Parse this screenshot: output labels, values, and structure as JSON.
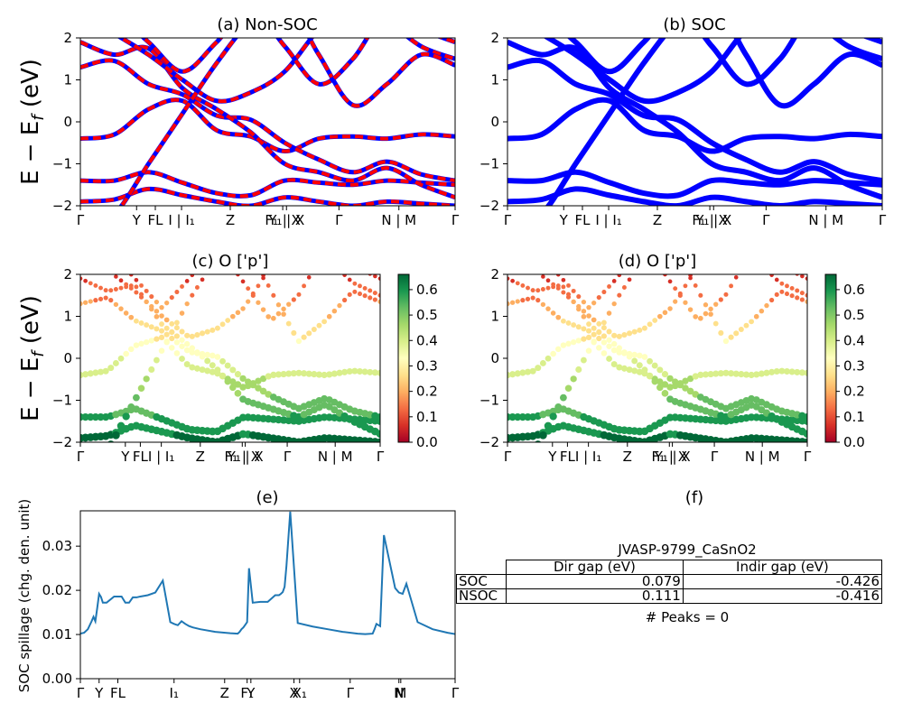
{
  "panels": {
    "a": {
      "title": "(a) Non-SOC"
    },
    "b": {
      "title": "(b) SOC"
    },
    "c": {
      "title": "(c)  O ['p']"
    },
    "d": {
      "title": "(d) O ['p']"
    },
    "e": {
      "title": "(e)"
    },
    "f": {
      "title": "(f)"
    }
  },
  "ylabel_energy": "E − E_f (eV)",
  "ylabel_spillage": "SOC spillage (chg. den. unit)",
  "kpath_labels": [
    "Γ",
    "Y",
    "FL",
    "I | I₁",
    "Z",
    "F₁ | X",
    "Y₁ | X",
    "Γ",
    "N | M",
    "Γ"
  ],
  "spillage_labels": [
    "Γ",
    "Y",
    "FL",
    "I₁",
    "Z",
    "F₁",
    "Y",
    "X",
    "X₁",
    "Γ",
    "N",
    "M",
    "Γ"
  ],
  "table": {
    "caption": "JVASP-9799_CaSnO2",
    "headers": [
      "Dir gap (eV)",
      "Indir gap (eV)"
    ],
    "rows": [
      {
        "label": "SOC",
        "dir": "0.079",
        "indir": "-0.426"
      },
      {
        "label": "NSOC",
        "dir": "0.111",
        "indir": "-0.416"
      }
    ],
    "peaks": "# Peaks = 0"
  },
  "chart_data": [
    {
      "id": "a",
      "type": "line",
      "title": "(a) Non-SOC",
      "ylabel": "E − E_f (eV)",
      "ylim": [
        -2,
        2
      ],
      "yticks": [
        -2,
        -1,
        0,
        1,
        2
      ],
      "x_ticks": [
        0,
        0.15,
        0.2,
        0.27,
        0.4,
        0.54,
        0.55,
        0.69,
        0.85,
        1.0
      ],
      "x_tick_labels": [
        "Γ",
        "Y",
        "FL",
        "I | I₁",
        "Z",
        "F₁ | X",
        "Y₁ | X",
        "Γ",
        "N | M",
        "Γ"
      ],
      "series_colors": {
        "non_soc": "#ff0000",
        "soc": "#0000ff"
      },
      "bands_energy_eV": [
        [
          -1.9,
          -1.85,
          -1.6,
          -1.75,
          -1.9,
          -2.0,
          -1.8,
          -1.9,
          -2.0,
          -1.9,
          -1.95,
          -2.0
        ],
        [
          -1.4,
          -1.4,
          -1.2,
          -1.45,
          -1.7,
          -1.75,
          -1.4,
          -1.45,
          -1.5,
          -1.4,
          -1.45,
          -1.5
        ],
        [
          -0.4,
          -0.3,
          0.3,
          0.5,
          -0.2,
          -0.35,
          -0.7,
          -0.4,
          -0.35,
          -0.4,
          -0.3,
          -0.35
        ],
        [
          1.3,
          1.45,
          0.9,
          0.65,
          0.15,
          0.05,
          -0.5,
          -0.9,
          -1.2,
          -0.95,
          -1.25,
          -1.4
        ],
        [
          1.9,
          1.6,
          1.75,
          0.8,
          0.3,
          -0.25,
          -1.0,
          -1.2,
          -1.4,
          -1.1,
          -1.5,
          -1.8
        ]
      ]
    },
    {
      "id": "b",
      "type": "line",
      "title": "(b) SOC",
      "ylabel": "",
      "ylim": [
        -2,
        2
      ],
      "yticks": [
        -2,
        -1,
        0,
        1,
        2
      ],
      "x_ticks": [
        0,
        0.15,
        0.2,
        0.27,
        0.4,
        0.54,
        0.55,
        0.69,
        0.85,
        1.0
      ],
      "x_tick_labels": [
        "Γ",
        "Y",
        "FL",
        "I | I₁",
        "Z",
        "F₁ | X",
        "Y₁ | X",
        "Γ",
        "N | M",
        "Γ"
      ],
      "series_colors": {
        "soc": "#0000ff"
      }
    },
    {
      "id": "c",
      "type": "scatter",
      "title": "(c)  O ['p']",
      "ylabel": "E − E_f (eV)",
      "ylim": [
        -2,
        2
      ],
      "yticks": [
        -2,
        -1,
        0,
        1,
        2
      ],
      "x_tick_labels": [
        "Γ",
        "Y",
        "FL",
        "I | I₁",
        "Z",
        "F₁ | X",
        "Y₁ | X",
        "Γ",
        "N | M",
        "Γ"
      ],
      "colorbar": {
        "cmap": "RdYlGn",
        "range": [
          0.0,
          0.66
        ],
        "ticks": [
          "0.0",
          "0.1",
          "0.2",
          "0.3",
          "0.4",
          "0.5",
          "0.6"
        ]
      }
    },
    {
      "id": "d",
      "type": "scatter",
      "title": "(d) O ['p']",
      "ylabel": "",
      "ylim": [
        -2,
        2
      ],
      "yticks": [
        -2,
        -1,
        0,
        1,
        2
      ],
      "x_tick_labels": [
        "Γ",
        "Y",
        "FL",
        "I | I₁",
        "Z",
        "F₁ | X",
        "Y₁ | X",
        "Γ",
        "N | M",
        "Γ"
      ],
      "colorbar": {
        "cmap": "RdYlGn",
        "range": [
          0.0,
          0.66
        ],
        "ticks": [
          "0.0",
          "0.1",
          "0.2",
          "0.3",
          "0.4",
          "0.5",
          "0.6"
        ]
      }
    },
    {
      "id": "e",
      "type": "line",
      "title": "(e)",
      "ylabel": "SOC spillage (chg. den. unit)",
      "ylim": [
        0,
        0.038
      ],
      "yticks": [
        "0.00",
        "0.01",
        "0.02",
        "0.03"
      ],
      "line_color": "#1f77b4",
      "x": [
        0,
        0.01,
        0.02,
        0.03,
        0.035,
        0.04,
        0.045,
        0.05,
        0.055,
        0.06,
        0.07,
        0.09,
        0.11,
        0.12,
        0.13,
        0.14,
        0.15,
        0.16,
        0.18,
        0.2,
        0.22,
        0.24,
        0.25,
        0.26,
        0.27,
        0.28,
        0.29,
        0.3,
        0.32,
        0.36,
        0.4,
        0.42,
        0.425,
        0.43,
        0.435,
        0.44,
        0.445,
        0.45,
        0.46,
        0.48,
        0.5,
        0.52,
        0.53,
        0.535,
        0.54,
        0.545,
        0.55,
        0.56,
        0.58,
        0.62,
        0.66,
        0.7,
        0.74,
        0.76,
        0.78,
        0.785,
        0.79,
        0.8,
        0.81,
        0.84,
        0.85,
        0.86,
        0.87,
        0.9,
        0.94,
        0.98,
        1.0
      ],
      "y": [
        0.0102,
        0.0104,
        0.0112,
        0.013,
        0.014,
        0.013,
        0.016,
        0.0192,
        0.0185,
        0.0172,
        0.0172,
        0.0186,
        0.0186,
        0.0172,
        0.0172,
        0.0184,
        0.0184,
        0.0186,
        0.0189,
        0.0195,
        0.0222,
        0.0128,
        0.0124,
        0.0121,
        0.013,
        0.0124,
        0.0119,
        0.0116,
        0.0112,
        0.0106,
        0.0103,
        0.0102,
        0.0106,
        0.0112,
        0.0116,
        0.0122,
        0.0128,
        0.025,
        0.0172,
        0.0174,
        0.0174,
        0.0189,
        0.0189,
        0.0192,
        0.0196,
        0.0208,
        0.0256,
        0.0378,
        0.0126,
        0.0118,
        0.0112,
        0.0106,
        0.0102,
        0.0101,
        0.0102,
        0.0112,
        0.0124,
        0.0119,
        0.0325,
        0.0205,
        0.0195,
        0.0192,
        0.0215,
        0.0128,
        0.0112,
        0.0104,
        0.0101
      ],
      "x_ticks": [
        0,
        0.05,
        0.1,
        0.25,
        0.385,
        0.445,
        0.455,
        0.57,
        0.585,
        0.72,
        0.85,
        0.855,
        1.0
      ],
      "x_tick_labels": [
        "Γ",
        "Y",
        "FL",
        "I₁",
        "Z",
        "F₁",
        "Y",
        "X",
        "X₁",
        "Γ",
        "N",
        "M",
        "Γ"
      ]
    }
  ]
}
